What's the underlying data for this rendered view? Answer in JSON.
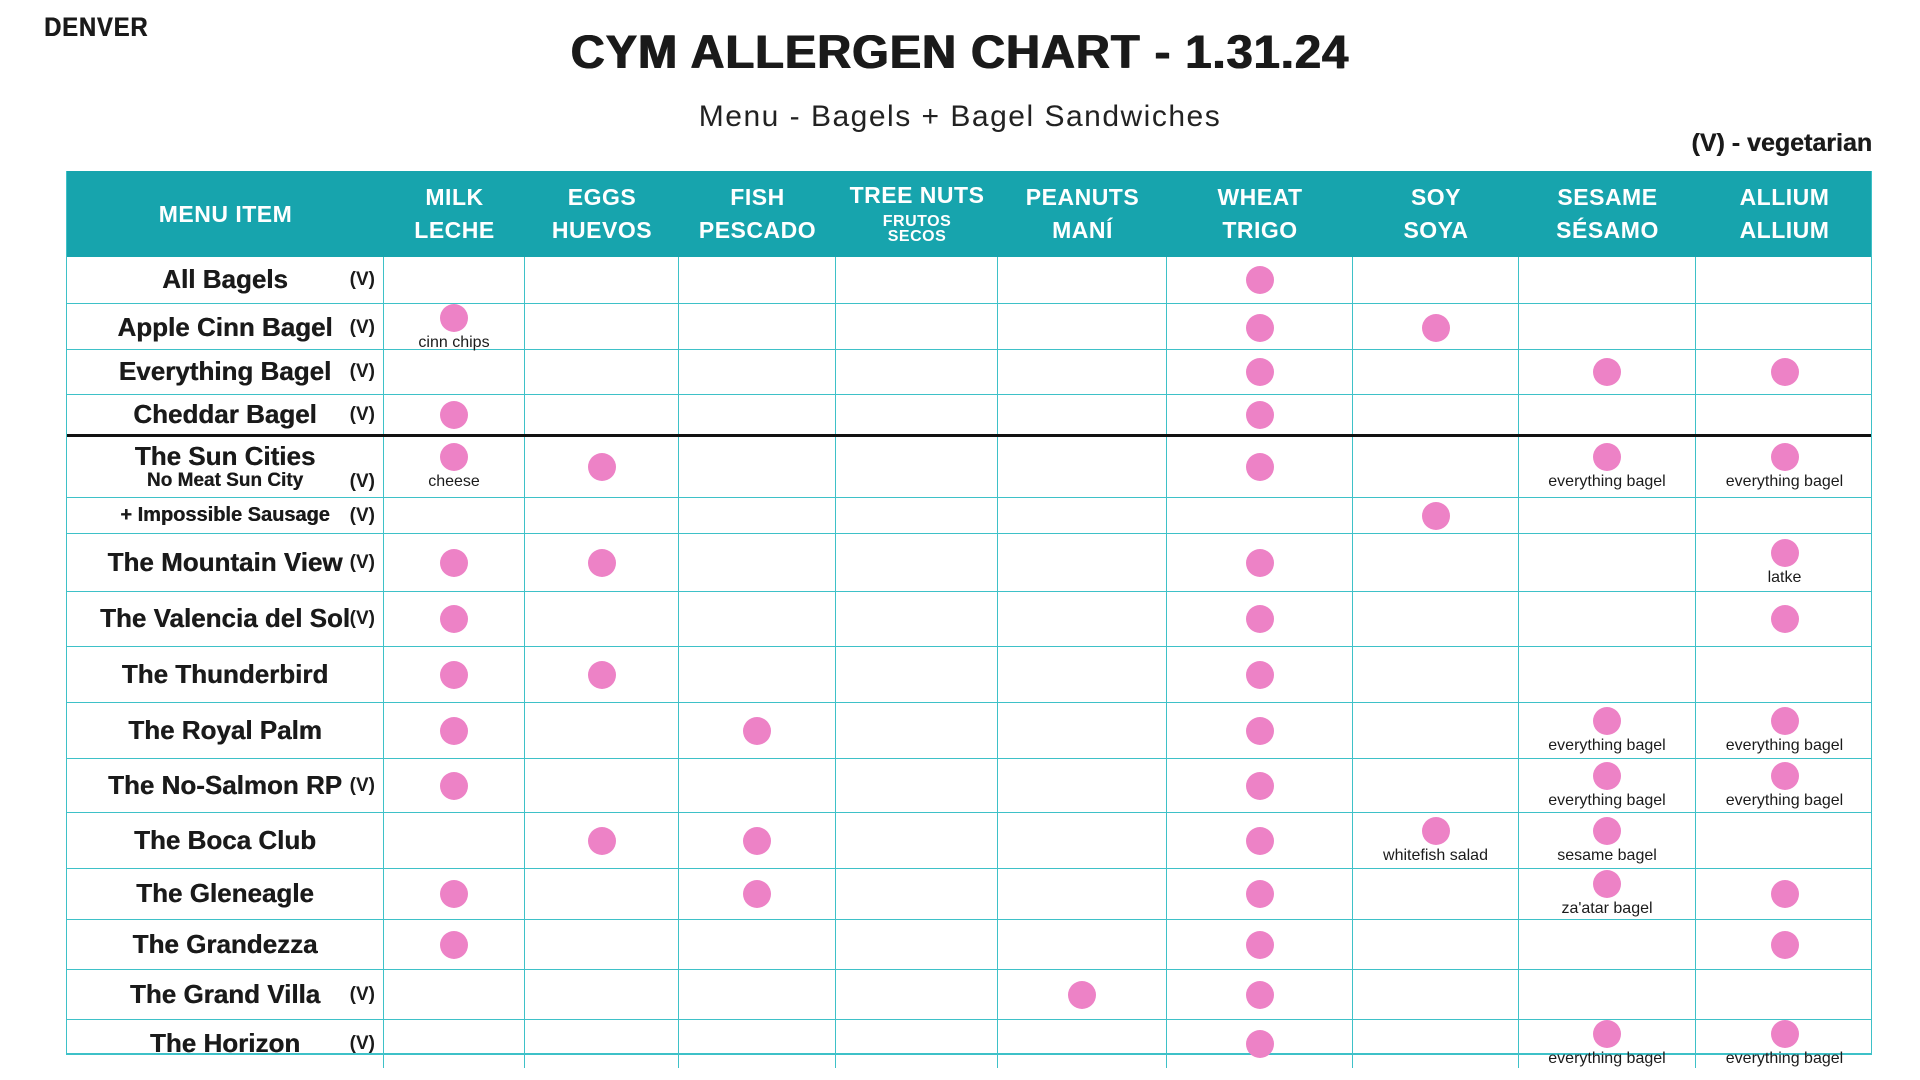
{
  "page": {
    "location": "DENVER",
    "title": "CYM ALLERGEN CHART - 1.31.24",
    "subtitle": "Menu - Bagels + Bagel Sandwiches",
    "legend": "(V) - vegetarian",
    "veg_mark": "(V)"
  },
  "colors": {
    "header_teal": "#17A4AD",
    "grid_line": "#3EC1C8",
    "allergen_dot_pink": "#ED82C6",
    "text": "#1A1A1A"
  },
  "columns": [
    {
      "key": "menu",
      "en": "MENU ITEM",
      "es": ""
    },
    {
      "key": "milk",
      "en": "MILK",
      "es": "LECHE"
    },
    {
      "key": "eggs",
      "en": "EGGS",
      "es": "HUEVOS"
    },
    {
      "key": "fish",
      "en": "FISH",
      "es": "PESCADO"
    },
    {
      "key": "treenuts",
      "en": "TREE NUTS",
      "es": "FRUTOS SECOS"
    },
    {
      "key": "peanuts",
      "en": "PEANUTS",
      "es": "MANÍ"
    },
    {
      "key": "wheat",
      "en": "WHEAT",
      "es": "TRIGO"
    },
    {
      "key": "soy",
      "en": "SOY",
      "es": "SOYA"
    },
    {
      "key": "sesame",
      "en": "SESAME",
      "es": "SÉSAMO"
    },
    {
      "key": "allium",
      "en": "ALLIUM",
      "es": "ALLIUM"
    }
  ],
  "rows": [
    {
      "name": "All Bagels",
      "veg": true,
      "marks": {
        "wheat": true
      }
    },
    {
      "name": "Apple Cinn Bagel",
      "veg": true,
      "marks": {
        "milk": "cinn chips",
        "wheat": true,
        "soy": true
      }
    },
    {
      "name": "Everything Bagel",
      "veg": true,
      "marks": {
        "wheat": true,
        "sesame": true,
        "allium": true
      }
    },
    {
      "name": "Cheddar Bagel",
      "veg": true,
      "divider_after": true,
      "marks": {
        "milk": true,
        "wheat": true
      }
    },
    {
      "name": "The Sun Cities",
      "sub": "No Meat Sun City",
      "veg": true,
      "marks": {
        "milk": "cheese",
        "eggs": true,
        "wheat": true,
        "sesame": "everything bagel",
        "allium": "everything bagel"
      }
    },
    {
      "name": "+ Impossible Sausage",
      "veg": true,
      "small": true,
      "marks": {
        "soy": true
      }
    },
    {
      "name": "The Mountain View",
      "veg": true,
      "marks": {
        "milk": true,
        "eggs": true,
        "wheat": true,
        "allium": "latke"
      }
    },
    {
      "name": "The Valencia del Sol",
      "veg": true,
      "marks": {
        "milk": true,
        "wheat": true,
        "allium": true
      }
    },
    {
      "name": "The Thunderbird",
      "veg": false,
      "marks": {
        "milk": true,
        "eggs": true,
        "wheat": true
      }
    },
    {
      "name": "The Royal Palm",
      "veg": false,
      "marks": {
        "milk": true,
        "fish": true,
        "wheat": true,
        "sesame": "everything bagel",
        "allium": "everything bagel"
      }
    },
    {
      "name": "The No-Salmon RP",
      "veg": true,
      "marks": {
        "milk": true,
        "wheat": true,
        "sesame": "everything bagel",
        "allium": "everything bagel"
      }
    },
    {
      "name": "The Boca Club",
      "veg": false,
      "marks": {
        "eggs": true,
        "fish": true,
        "wheat": true,
        "soy": "whitefish salad",
        "sesame": "sesame bagel"
      }
    },
    {
      "name": "The Gleneagle",
      "veg": false,
      "marks": {
        "milk": true,
        "fish": true,
        "wheat": true,
        "sesame": "za'atar bagel",
        "allium": true
      }
    },
    {
      "name": "The Grandezza",
      "veg": false,
      "marks": {
        "milk": true,
        "wheat": true,
        "allium": true
      }
    },
    {
      "name": "The Grand Villa",
      "veg": true,
      "marks": {
        "peanuts": true,
        "wheat": true
      }
    },
    {
      "name": "The Horizon",
      "veg": true,
      "marks": {
        "wheat": true,
        "sesame": "everything bagel",
        "allium": "everything bagel"
      }
    }
  ]
}
